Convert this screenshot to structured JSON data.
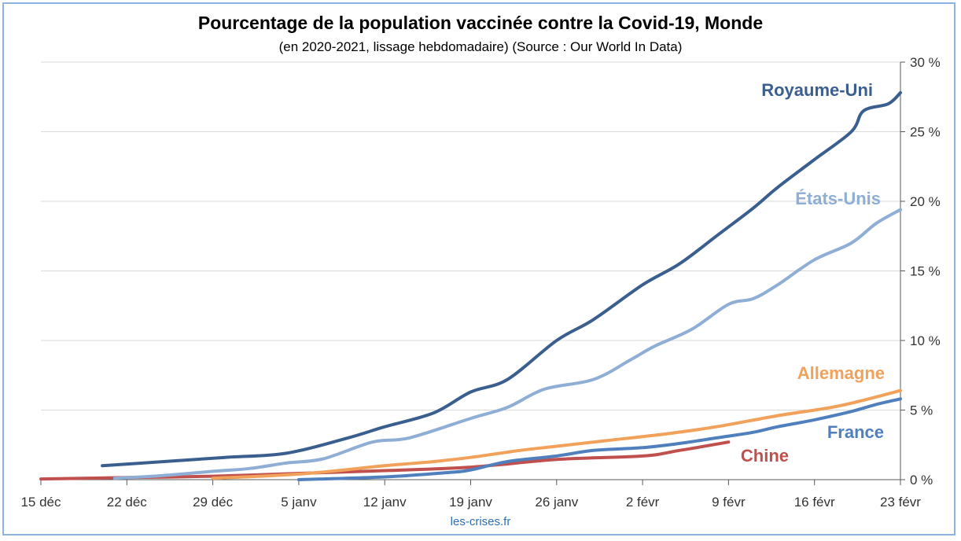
{
  "chart_data": {
    "type": "line",
    "title": "Pourcentage de la population vaccinée contre la Covid-19, Monde",
    "subtitle": "(en 2020-2021, lissage hebdomadaire) (Source : Our World In Data)",
    "source_note": "les-crises.fr",
    "x_tick_labels": [
      "15 déc",
      "22 déc",
      "29 déc",
      "5 janv",
      "12 janv",
      "19 janv",
      "26 janv",
      "2 févr",
      "9 févr",
      "16 févr",
      "23 févr"
    ],
    "y_tick_labels": [
      "0 %",
      "5 %",
      "10 %",
      "15 %",
      "20 %",
      "25 %",
      "30 %"
    ],
    "x_unit": "days after 15 déc 2020",
    "xlim": [
      0,
      70
    ],
    "ylim": [
      0,
      30
    ],
    "grid": true,
    "y_axis_position": "right",
    "colors": {
      "Royaume-Uni": "#3a5f8f",
      "États-Unis": "#8eaed6",
      "Allemagne": "#f1a15a",
      "France": "#4f7fbd",
      "Chine": "#c0504d",
      "frame": "#8db3e2",
      "source": "#2f6fb3"
    },
    "series": [
      {
        "name": "Royaume-Uni",
        "x": [
          5,
          10,
          15,
          20,
          25,
          28,
          32,
          35,
          38,
          42,
          45,
          49,
          52,
          55,
          58,
          60,
          63,
          66,
          67,
          69,
          70
        ],
        "values": [
          1.0,
          1.3,
          1.6,
          1.9,
          3.0,
          3.8,
          4.8,
          6.3,
          7.2,
          10.0,
          11.5,
          14.0,
          15.5,
          17.5,
          19.5,
          21.0,
          23.0,
          25.0,
          26.5,
          27.0,
          27.8
        ]
      },
      {
        "name": "États-Unis",
        "x": [
          6,
          10,
          14,
          17,
          20,
          23,
          27,
          30,
          35,
          38,
          41,
          45,
          48,
          50,
          53,
          56,
          58,
          60,
          63,
          66,
          68,
          70
        ],
        "values": [
          0.1,
          0.3,
          0.6,
          0.8,
          1.2,
          1.5,
          2.7,
          3.0,
          4.4,
          5.2,
          6.5,
          7.2,
          8.6,
          9.6,
          10.8,
          12.6,
          13.0,
          14.0,
          15.8,
          17.0,
          18.4,
          19.4
        ]
      },
      {
        "name": "Allemagne",
        "x": [
          14,
          21,
          28,
          32,
          35,
          39,
          42,
          46,
          51,
          55,
          60,
          65,
          70
        ],
        "values": [
          0.1,
          0.4,
          1.0,
          1.3,
          1.6,
          2.1,
          2.4,
          2.8,
          3.3,
          3.8,
          4.6,
          5.3,
          6.4
        ]
      },
      {
        "name": "France",
        "x": [
          21,
          28,
          33,
          35,
          38,
          42,
          45,
          49,
          52,
          55,
          58,
          60,
          63,
          66,
          68,
          70
        ],
        "values": [
          0.0,
          0.2,
          0.5,
          0.7,
          1.3,
          1.7,
          2.1,
          2.3,
          2.6,
          3.0,
          3.4,
          3.8,
          4.3,
          4.9,
          5.4,
          5.8
        ]
      },
      {
        "name": "Chine",
        "x": [
          0,
          7,
          14,
          21,
          28,
          35,
          42,
          49,
          52,
          56
        ],
        "values": [
          0.05,
          0.15,
          0.25,
          0.45,
          0.65,
          0.9,
          1.45,
          1.7,
          2.1,
          2.7
        ]
      }
    ]
  }
}
